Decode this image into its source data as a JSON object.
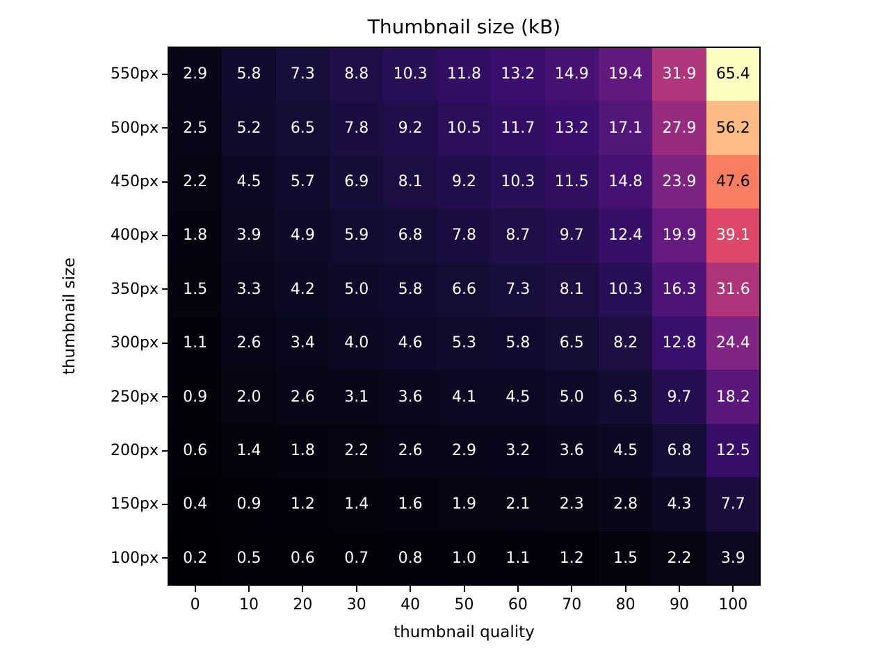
{
  "chart_data": {
    "type": "heatmap",
    "title": "Thumbnail size (kB)",
    "xlabel": "thumbnail quality",
    "ylabel": "thumbnail size",
    "x_tick_labels": [
      "0",
      "10",
      "20",
      "30",
      "40",
      "50",
      "60",
      "70",
      "80",
      "90",
      "100"
    ],
    "y_tick_labels": [
      "550px",
      "500px",
      "450px",
      "400px",
      "350px",
      "300px",
      "250px",
      "200px",
      "150px",
      "100px"
    ],
    "values": [
      [
        2.9,
        5.8,
        7.3,
        8.8,
        10.3,
        11.8,
        13.2,
        14.9,
        19.4,
        31.9,
        65.4
      ],
      [
        2.5,
        5.2,
        6.5,
        7.8,
        9.2,
        10.5,
        11.7,
        13.2,
        17.1,
        27.9,
        56.2
      ],
      [
        2.2,
        4.5,
        5.7,
        6.9,
        8.1,
        9.2,
        10.3,
        11.5,
        14.8,
        23.9,
        47.6
      ],
      [
        1.8,
        3.9,
        4.9,
        5.9,
        6.8,
        7.8,
        8.7,
        9.7,
        12.4,
        19.9,
        39.1
      ],
      [
        1.5,
        3.3,
        4.2,
        5.0,
        5.8,
        6.6,
        7.3,
        8.1,
        10.3,
        16.3,
        31.6
      ],
      [
        1.1,
        2.6,
        3.4,
        4.0,
        4.6,
        5.3,
        5.8,
        6.5,
        8.2,
        12.8,
        24.4
      ],
      [
        0.9,
        2.0,
        2.6,
        3.1,
        3.6,
        4.1,
        4.5,
        5.0,
        6.3,
        9.7,
        18.2
      ],
      [
        0.6,
        1.4,
        1.8,
        2.2,
        2.6,
        2.9,
        3.2,
        3.6,
        4.5,
        6.8,
        12.5
      ],
      [
        0.4,
        0.9,
        1.2,
        1.4,
        1.6,
        1.9,
        2.1,
        2.3,
        2.8,
        4.3,
        7.7
      ],
      [
        0.2,
        0.5,
        0.6,
        0.7,
        0.8,
        1.0,
        1.1,
        1.2,
        1.5,
        2.2,
        3.9
      ]
    ],
    "value_decimals": 1,
    "vmin": 0.2,
    "vmax": 65.4,
    "colormap": "magma",
    "colormap_stops": [
      "#000004",
      "#140e36",
      "#3b0f70",
      "#641a80",
      "#8c2981",
      "#b73779",
      "#de4968",
      "#f7705c",
      "#fe9f6d",
      "#fecf92",
      "#fcfdbf"
    ],
    "annotation_color_light": "#ffffff",
    "annotation_color_dark": "#000000",
    "annotation_dark_threshold": 0.65,
    "axis_color": "#000000",
    "background_color": "#ffffff",
    "grid": false,
    "legend": false
  }
}
